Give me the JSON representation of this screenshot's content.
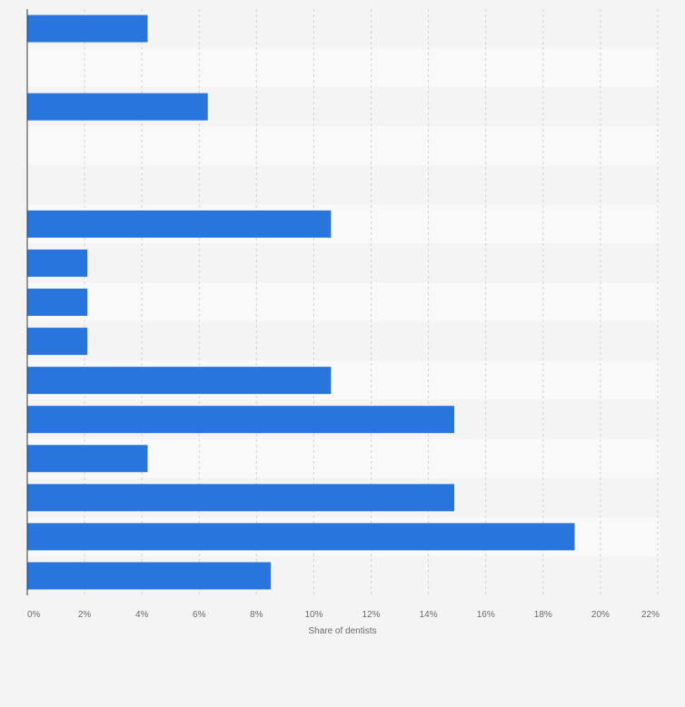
{
  "chart_data": {
    "type": "bar",
    "orientation": "horizontal",
    "title": "",
    "xlabel": "Share of dentists",
    "ylabel": "",
    "xlim": [
      0,
      22
    ],
    "x_ticks": [
      0,
      2,
      4,
      6,
      8,
      10,
      12,
      14,
      16,
      18,
      20,
      22
    ],
    "x_tick_labels": [
      "0%",
      "2%",
      "4%",
      "6%",
      "8%",
      "10%",
      "12%",
      "14%",
      "16%",
      "18%",
      "20%",
      "22%"
    ],
    "categories": [
      "",
      "",
      "",
      "",
      "",
      "",
      "",
      "",
      "",
      "",
      "",
      "",
      "",
      "",
      ""
    ],
    "values": [
      4.2,
      0,
      6.3,
      0,
      0,
      10.6,
      2.1,
      2.1,
      2.1,
      10.6,
      14.9,
      4.2,
      14.9,
      19.1,
      8.5
    ],
    "grid": true,
    "legend": "none",
    "colors": {
      "bar": "#2876dd",
      "band_a": "#f4f4f4",
      "band_b": "#f9f9f9",
      "gridline": "#d4d4d4",
      "axis": "#3a3a3a"
    }
  }
}
